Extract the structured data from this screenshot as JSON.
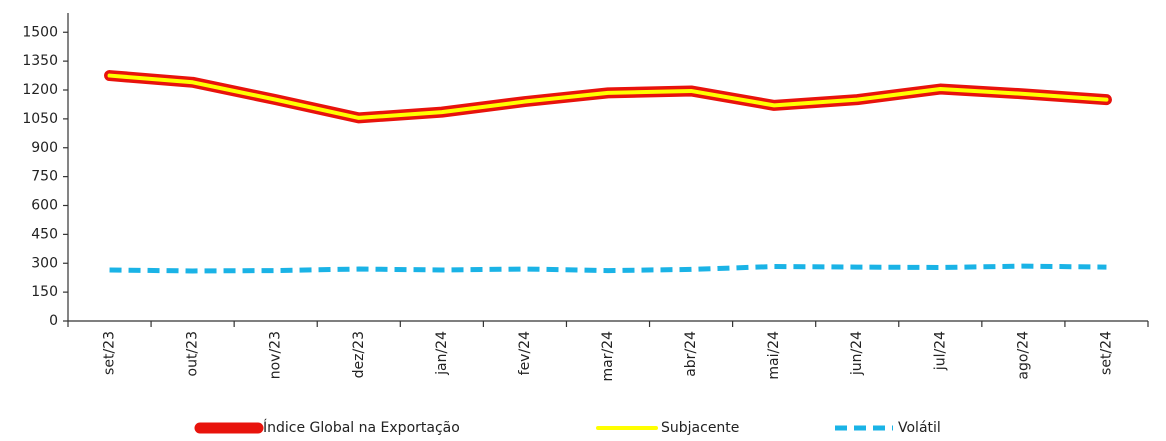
{
  "chart_data": {
    "type": "line",
    "categories": [
      "set/23",
      "out/23",
      "nov/23",
      "dez/23",
      "jan/24",
      "fev/24",
      "mar/24",
      "abr/24",
      "mai/24",
      "jun/24",
      "jul/24",
      "ago/24",
      "set/24"
    ],
    "series": [
      {
        "name": "Índice Global na Exportação",
        "color": "#e8130c",
        "line_style": "thick",
        "values": [
          1275,
          1240,
          1150,
          1055,
          1085,
          1140,
          1185,
          1195,
          1120,
          1150,
          1205,
          1180,
          1150
        ]
      },
      {
        "name": "Subjacente",
        "color": "#ffff00",
        "line_style": "solid",
        "values": [
          1275,
          1240,
          1150,
          1055,
          1085,
          1140,
          1185,
          1195,
          1120,
          1150,
          1205,
          1180,
          1150
        ]
      },
      {
        "name": "Volátil",
        "color": "#1ab3e6",
        "line_style": "dashed",
        "values": [
          265,
          260,
          262,
          270,
          265,
          270,
          262,
          268,
          283,
          280,
          278,
          285,
          280
        ]
      }
    ],
    "ylim": [
      0,
      1600
    ],
    "yticks": [
      0,
      150,
      300,
      450,
      600,
      750,
      900,
      1050,
      1200,
      1350,
      1500
    ],
    "grid": false,
    "legend": "bottom"
  }
}
